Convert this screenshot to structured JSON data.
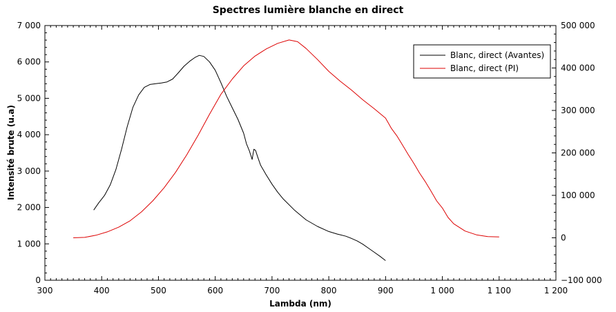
{
  "chart_data": {
    "type": "line",
    "title": "Spectres lumière blanche en direct",
    "xlabel": "Lambda (nm)",
    "ylabel": "Intensité brute (u.a)",
    "y2label": "",
    "xlim": [
      300,
      1200
    ],
    "ylim": [
      0,
      7000
    ],
    "y2lim": [
      -100000,
      500000
    ],
    "x_ticks": [
      300,
      400,
      500,
      600,
      700,
      800,
      900,
      1000,
      1100,
      1200
    ],
    "x_tick_labels": [
      "300",
      "400",
      "500",
      "600",
      "700",
      "800",
      "900",
      "1 000",
      "1 100",
      "1 200"
    ],
    "y_ticks": [
      0,
      1000,
      2000,
      3000,
      4000,
      5000,
      6000,
      7000
    ],
    "y_tick_labels": [
      "0",
      "1 000",
      "2 000",
      "3 000",
      "4 000",
      "5 000",
      "6 000",
      "7 000"
    ],
    "y2_ticks": [
      -100000,
      0,
      100000,
      200000,
      300000,
      400000,
      500000
    ],
    "y2_tick_labels": [
      "−100 000",
      "0",
      "100 000",
      "200 000",
      "300 000",
      "400 000",
      "500 000"
    ],
    "grid": false,
    "legend_position": "top-right",
    "series": [
      {
        "name": "Blanc, direct (Avantes)",
        "color": "#000000",
        "axis": "left",
        "x": [
          386,
          395,
          405,
          415,
          425,
          435,
          445,
          455,
          465,
          475,
          485,
          495,
          505,
          515,
          525,
          535,
          545,
          555,
          565,
          572,
          580,
          590,
          600,
          610,
          620,
          630,
          640,
          650,
          655,
          660,
          665,
          668,
          671,
          675,
          680,
          690,
          700,
          710,
          720,
          740,
          760,
          780,
          800,
          815,
          820,
          830,
          840,
          850,
          860,
          870,
          880,
          890,
          900
        ],
        "values": [
          1930,
          2130,
          2330,
          2620,
          3040,
          3600,
          4220,
          4750,
          5090,
          5300,
          5380,
          5400,
          5420,
          5450,
          5530,
          5700,
          5880,
          6020,
          6130,
          6180,
          6150,
          6000,
          5770,
          5430,
          5060,
          4740,
          4420,
          4040,
          3750,
          3560,
          3320,
          3600,
          3570,
          3380,
          3160,
          2890,
          2640,
          2420,
          2230,
          1920,
          1660,
          1480,
          1340,
          1270,
          1250,
          1210,
          1150,
          1080,
          990,
          880,
          770,
          660,
          540
        ]
      },
      {
        "name": "Blanc, direct (PI)",
        "color": "#dd0000",
        "axis": "right",
        "x": [
          350,
          370,
          390,
          410,
          430,
          450,
          470,
          490,
          510,
          530,
          550,
          570,
          590,
          610,
          630,
          650,
          670,
          690,
          710,
          730,
          745,
          760,
          780,
          800,
          820,
          840,
          860,
          880,
          900,
          910,
          920,
          930,
          940,
          950,
          960,
          970,
          980,
          990,
          1000,
          1010,
          1020,
          1040,
          1060,
          1080,
          1100
        ],
        "values": [
          0,
          1000,
          6000,
          14000,
          25000,
          40000,
          61000,
          87000,
          118000,
          154000,
          196000,
          242000,
          291000,
          338000,
          374000,
          405000,
          428000,
          445000,
          458000,
          466000,
          462000,
          446000,
          420000,
          392000,
          369000,
          348000,
          325000,
          304000,
          282000,
          258000,
          240000,
          218000,
          196000,
          175000,
          152000,
          132000,
          110000,
          87000,
          70000,
          48000,
          33000,
          16000,
          7000,
          3000,
          2000
        ]
      }
    ]
  }
}
